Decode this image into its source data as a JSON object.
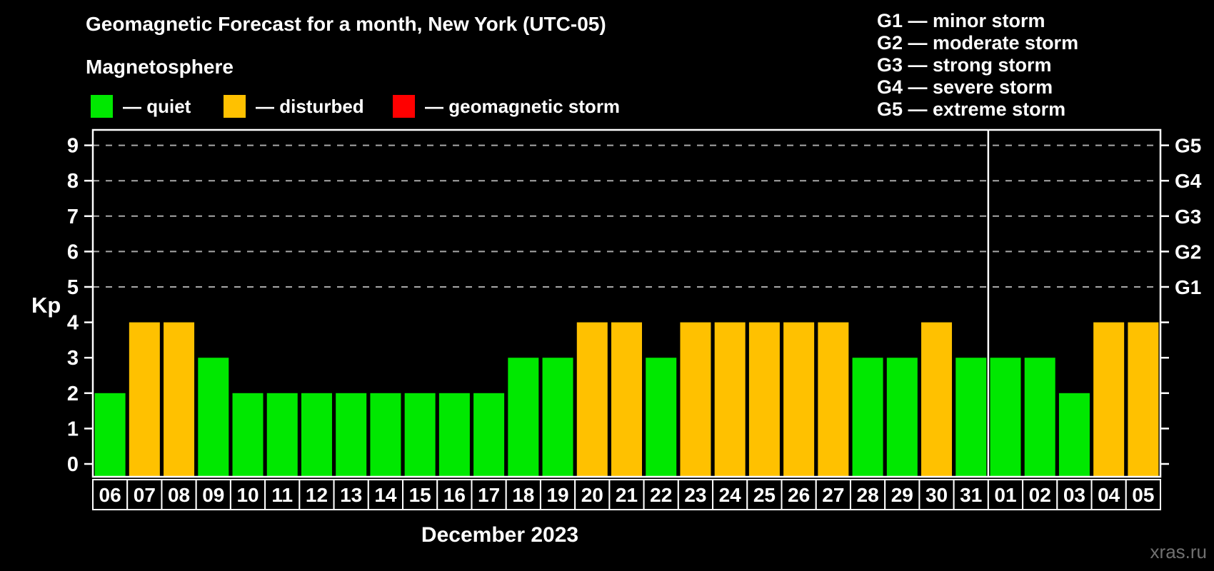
{
  "header": {
    "title": "Geomagnetic Forecast for a month, New York (UTC-05)",
    "subtitle": "Magnetosphere"
  },
  "legend": [
    {
      "key": "quiet",
      "label": "— quiet",
      "color": "#00e800"
    },
    {
      "key": "disturbed",
      "label": "— disturbed",
      "color": "#ffc100"
    },
    {
      "key": "storm",
      "label": "— geomagnetic storm",
      "color": "#ff0000"
    }
  ],
  "g_legend": [
    "G1 — minor storm",
    "G2 — moderate storm",
    "G3 — strong storm",
    "G4 — severe storm",
    "G5 — extreme storm"
  ],
  "chart_data": {
    "type": "bar",
    "title": "Geomagnetic Forecast for a month, New York (UTC-05)",
    "ylabel": "Kp",
    "xlabel": "December 2023",
    "ylim": [
      -0.4,
      9.4
    ],
    "yticks": [
      0,
      1,
      2,
      3,
      4,
      5,
      6,
      7,
      8,
      9
    ],
    "grid": "dashed horizontal lines at Kp 5-9",
    "gridline_kp": [
      5,
      6,
      7,
      8,
      9
    ],
    "right_axis": [
      {
        "kp": 5,
        "label": "G1"
      },
      {
        "kp": 6,
        "label": "G2"
      },
      {
        "kp": 7,
        "label": "G3"
      },
      {
        "kp": 8,
        "label": "G4"
      },
      {
        "kp": 9,
        "label": "G5"
      }
    ],
    "categories": [
      "06",
      "07",
      "08",
      "09",
      "10",
      "11",
      "12",
      "13",
      "14",
      "15",
      "16",
      "17",
      "18",
      "19",
      "20",
      "21",
      "22",
      "23",
      "24",
      "25",
      "26",
      "27",
      "28",
      "29",
      "30",
      "31",
      "01",
      "02",
      "03",
      "04",
      "05"
    ],
    "values": [
      2,
      4,
      4,
      3,
      2,
      2,
      2,
      2,
      2,
      2,
      2,
      2,
      3,
      3,
      4,
      4,
      3,
      4,
      4,
      4,
      4,
      4,
      3,
      3,
      4,
      3,
      3,
      3,
      2,
      4,
      4
    ],
    "statuses": [
      "quiet",
      "disturbed",
      "disturbed",
      "quiet",
      "quiet",
      "quiet",
      "quiet",
      "quiet",
      "quiet",
      "quiet",
      "quiet",
      "quiet",
      "quiet",
      "quiet",
      "disturbed",
      "disturbed",
      "quiet",
      "disturbed",
      "disturbed",
      "disturbed",
      "disturbed",
      "disturbed",
      "quiet",
      "quiet",
      "disturbed",
      "quiet",
      "quiet",
      "quiet",
      "quiet",
      "disturbed",
      "disturbed"
    ],
    "status_colors": {
      "quiet": "#00e800",
      "disturbed": "#ffc100",
      "storm": "#ff0000"
    },
    "month_divider_after_index": 25,
    "legend_position": "top-left"
  },
  "watermark": "xras.ru",
  "colors": {
    "background": "#000000",
    "axis": "#ffffff",
    "gridline": "#a8a8a8",
    "text": "#ffffff",
    "watermark": "#707070"
  }
}
